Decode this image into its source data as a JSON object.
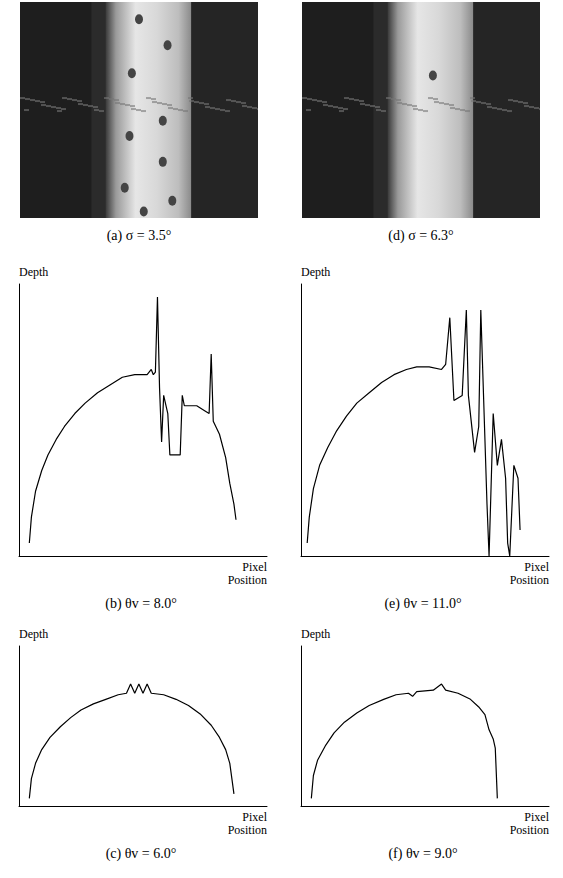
{
  "images": [
    {
      "title": "(a) σ = 3.5°"
    },
    {
      "title": "(d) σ = 6.3°"
    }
  ],
  "chart_data": [
    {
      "type": "line",
      "title": "(b) θv = 8.0°",
      "x_label": "Pixel Position",
      "y_label": "Depth",
      "xlim": [
        0,
        120
      ],
      "ylim": [
        0,
        105
      ],
      "tick_labels": false,
      "grid": false,
      "color": "#000000",
      "x": [
        5,
        6,
        8,
        11,
        14,
        18,
        22,
        27,
        32,
        38,
        44,
        50,
        56,
        62,
        64,
        65,
        66,
        67,
        68,
        69,
        70,
        72,
        73,
        78,
        79,
        80,
        86,
        90,
        92,
        93,
        94,
        97,
        100,
        102,
        104,
        105
      ],
      "values": [
        5,
        15,
        25,
        33,
        39,
        45,
        50,
        55,
        59,
        63,
        66,
        69,
        70,
        70,
        72,
        70,
        71,
        100,
        65,
        44,
        62,
        55,
        39,
        39,
        62,
        58,
        58,
        56,
        55,
        78,
        52,
        47,
        38,
        28,
        20,
        14
      ]
    },
    {
      "type": "line",
      "title": "(c) θv = 6.0°",
      "x_label": "Pixel Position",
      "y_label": "Depth",
      "xlim": [
        0,
        120
      ],
      "ylim": [
        0,
        105
      ],
      "tick_labels": false,
      "grid": false,
      "color": "#000000",
      "x": [
        5,
        6,
        8,
        11,
        15,
        20,
        25,
        30,
        36,
        42,
        48,
        52,
        54,
        56,
        58,
        60,
        62,
        64,
        70,
        76,
        82,
        88,
        93,
        97,
        100,
        102,
        103,
        104
      ],
      "values": [
        5,
        18,
        28,
        37,
        45,
        52,
        58,
        63,
        67,
        70,
        73,
        74,
        80,
        74,
        80,
        74,
        80,
        74,
        73,
        70,
        66,
        60,
        53,
        45,
        37,
        28,
        18,
        8
      ]
    },
    {
      "type": "line",
      "title": "(e) θv = 11.0°",
      "x_label": "Pixel Position",
      "y_label": "Depth",
      "xlim": [
        0,
        120
      ],
      "ylim": [
        0,
        105
      ],
      "tick_labels": false,
      "grid": false,
      "color": "#000000",
      "x": [
        3,
        4,
        6,
        9,
        13,
        17,
        22,
        27,
        33,
        39,
        45,
        51,
        56,
        62,
        68,
        70,
        72,
        74,
        78,
        80,
        81,
        84,
        86,
        87,
        88,
        90,
        91,
        93,
        95,
        97,
        99,
        100,
        101,
        103,
        105,
        106
      ],
      "values": [
        5,
        15,
        26,
        35,
        42,
        48,
        54,
        59,
        63,
        67,
        70,
        72,
        73,
        73,
        72,
        74,
        92,
        60,
        62,
        95,
        62,
        40,
        50,
        95,
        70,
        20,
        0,
        55,
        35,
        45,
        30,
        5,
        0,
        35,
        30,
        10
      ]
    },
    {
      "type": "line",
      "title": "(f) θv = 9.0°",
      "x_label": "Pixel Position",
      "y_label": "Depth",
      "xlim": [
        0,
        120
      ],
      "ylim": [
        0,
        105
      ],
      "tick_labels": false,
      "grid": false,
      "color": "#000000",
      "x": [
        5,
        6,
        8,
        12,
        16,
        21,
        27,
        33,
        40,
        46,
        52,
        54,
        56,
        64,
        68,
        70,
        76,
        82,
        86,
        89,
        91,
        93,
        94,
        95
      ],
      "values": [
        5,
        20,
        30,
        40,
        48,
        55,
        61,
        66,
        70,
        73,
        74,
        72,
        75,
        76,
        80,
        76,
        74,
        70,
        65,
        60,
        50,
        44,
        38,
        5
      ]
    }
  ]
}
